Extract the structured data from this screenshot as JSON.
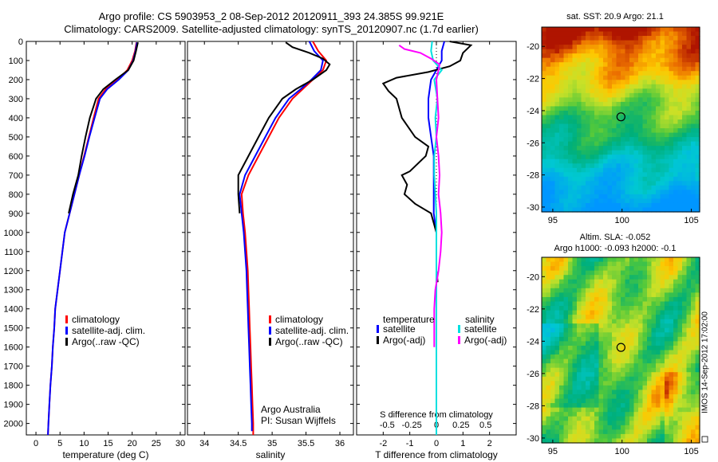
{
  "header": {
    "title_line1": "Argo profile: CS 5903953_2 08-Sep-2012 20120911_393 24.385S 99.921E",
    "title_line2": "Climatology: CARS2009. Satellite-adjusted climatology: synTS_20120907.nc (1.7d earlier)"
  },
  "footer": {
    "credit": "IMOS 14-Sep-2012 17:02:00"
  },
  "colors": {
    "climatology": "#ff0000",
    "satellite": "#0000ff",
    "argo": "#000000",
    "sat_salinity": "#00e0e0",
    "argo_salinity": "#ff00ff"
  },
  "chart_data": [
    {
      "type": "line",
      "panel": "temperature",
      "xlabel": "temperature (deg C)",
      "x_ticks": [
        0,
        5,
        10,
        15,
        20,
        25,
        30
      ],
      "xlim": [
        -2,
        31
      ],
      "ylim": [
        2060,
        0
      ],
      "y_ticks": [
        0,
        100,
        200,
        300,
        400,
        500,
        600,
        700,
        800,
        900,
        1000,
        1100,
        1200,
        1300,
        1400,
        1500,
        1600,
        1700,
        1800,
        1900,
        2000
      ],
      "legend": [
        "climatology",
        "satellite-adj. clim.",
        "Argo(..raw -QC)"
      ],
      "legend_position": "bottom-right",
      "series": [
        {
          "name": "climatology",
          "color": "#ff0000",
          "points": [
            [
              20.9,
              5
            ],
            [
              20.6,
              50
            ],
            [
              20,
              100
            ],
            [
              19,
              150
            ],
            [
              17,
              200
            ],
            [
              14.5,
              250
            ],
            [
              13,
              300
            ],
            [
              12,
              400
            ],
            [
              11,
              500
            ],
            [
              10,
              600
            ],
            [
              9,
              700
            ],
            [
              8,
              800
            ],
            [
              7,
              900
            ],
            [
              6,
              1000
            ],
            [
              5.5,
              1100
            ],
            [
              5,
              1200
            ],
            [
              4.5,
              1300
            ],
            [
              4,
              1400
            ],
            [
              3.8,
              1500
            ],
            [
              3.5,
              1600
            ],
            [
              3.3,
              1700
            ],
            [
              3,
              1800
            ],
            [
              2.8,
              1900
            ],
            [
              2.6,
              2000
            ],
            [
              2.5,
              2060
            ]
          ]
        },
        {
          "name": "satellite-adj. clim.",
          "color": "#0000ff",
          "points": [
            [
              21,
              5
            ],
            [
              20.7,
              50
            ],
            [
              20.2,
              100
            ],
            [
              19.2,
              150
            ],
            [
              17.2,
              200
            ],
            [
              14.8,
              250
            ],
            [
              13.3,
              300
            ],
            [
              12.2,
              400
            ],
            [
              11.1,
              500
            ],
            [
              10.1,
              600
            ],
            [
              9,
              700
            ],
            [
              8,
              800
            ],
            [
              7,
              900
            ],
            [
              6,
              1000
            ],
            [
              5.5,
              1100
            ],
            [
              5,
              1200
            ],
            [
              4.5,
              1300
            ],
            [
              4,
              1400
            ],
            [
              3.8,
              1500
            ],
            [
              3.5,
              1600
            ],
            [
              3.3,
              1700
            ],
            [
              3,
              1800
            ],
            [
              2.8,
              1900
            ],
            [
              2.6,
              2000
            ],
            [
              2.5,
              2060
            ]
          ]
        },
        {
          "name": "Argo(..raw -QC)",
          "color": "#000000",
          "points": [
            [
              21.2,
              5
            ],
            [
              20.8,
              50
            ],
            [
              20.3,
              100
            ],
            [
              19.2,
              150
            ],
            [
              16.5,
              200
            ],
            [
              14,
              250
            ],
            [
              12.5,
              300
            ],
            [
              11.2,
              400
            ],
            [
              10.3,
              500
            ],
            [
              9.5,
              600
            ],
            [
              8.8,
              700
            ],
            [
              7.7,
              800
            ],
            [
              6.8,
              900
            ]
          ]
        }
      ],
      "annotation": ""
    },
    {
      "type": "line",
      "panel": "salinity",
      "xlabel": "salinity",
      "x_ticks": [
        34,
        34.5,
        35,
        35.5,
        36
      ],
      "xlim": [
        33.75,
        36.2
      ],
      "ylim": [
        2060,
        0
      ],
      "legend": [
        "climatology",
        "satellite-adj. clim.",
        "Argo(..raw -QC)"
      ],
      "legend_position": "bottom-right",
      "annotation_lines": [
        "Argo Australia",
        "PI: Susan Wijffels"
      ],
      "series": [
        {
          "name": "climatology",
          "color": "#ff0000",
          "points": [
            [
              35.6,
              0
            ],
            [
              35.68,
              50
            ],
            [
              35.8,
              100
            ],
            [
              35.75,
              150
            ],
            [
              35.6,
              200
            ],
            [
              35.45,
              250
            ],
            [
              35.3,
              300
            ],
            [
              35.1,
              400
            ],
            [
              34.95,
              500
            ],
            [
              34.8,
              600
            ],
            [
              34.65,
              700
            ],
            [
              34.55,
              800
            ],
            [
              34.57,
              900
            ],
            [
              34.6,
              1000
            ],
            [
              34.62,
              1100
            ],
            [
              34.64,
              1200
            ],
            [
              34.65,
              1300
            ],
            [
              34.66,
              1400
            ],
            [
              34.67,
              1500
            ],
            [
              34.68,
              1600
            ],
            [
              34.69,
              1700
            ],
            [
              34.7,
              1800
            ],
            [
              34.71,
              1900
            ],
            [
              34.72,
              2000
            ],
            [
              34.72,
              2060
            ]
          ]
        },
        {
          "name": "satellite-adj. clim.",
          "color": "#0000ff",
          "points": [
            [
              35.55,
              0
            ],
            [
              35.62,
              50
            ],
            [
              35.75,
              100
            ],
            [
              35.72,
              150
            ],
            [
              35.58,
              200
            ],
            [
              35.42,
              250
            ],
            [
              35.25,
              300
            ],
            [
              35.05,
              400
            ],
            [
              34.9,
              500
            ],
            [
              34.75,
              600
            ],
            [
              34.6,
              700
            ],
            [
              34.52,
              800
            ],
            [
              34.55,
              900
            ],
            [
              34.58,
              1000
            ],
            [
              34.6,
              1100
            ],
            [
              34.62,
              1200
            ],
            [
              34.63,
              1300
            ],
            [
              34.64,
              1400
            ],
            [
              34.65,
              1500
            ],
            [
              34.66,
              1600
            ],
            [
              34.67,
              1700
            ],
            [
              34.68,
              1800
            ],
            [
              34.69,
              1900
            ],
            [
              34.7,
              2000
            ],
            [
              34.7,
              2040
            ]
          ]
        },
        {
          "name": "Argo(..raw -QC)",
          "color": "#000000",
          "points": [
            [
              35.2,
              5
            ],
            [
              35.3,
              30
            ],
            [
              35.55,
              60
            ],
            [
              35.75,
              90
            ],
            [
              35.85,
              120
            ],
            [
              35.8,
              150
            ],
            [
              35.6,
              200
            ],
            [
              35.35,
              250
            ],
            [
              35.15,
              300
            ],
            [
              34.95,
              400
            ],
            [
              34.8,
              500
            ],
            [
              34.65,
              600
            ],
            [
              34.5,
              700
            ],
            [
              34.5,
              800
            ],
            [
              34.52,
              900
            ]
          ]
        }
      ]
    },
    {
      "type": "line",
      "panel": "difference",
      "xlabel": "T difference from climatology",
      "x_ticks": [
        -2,
        -1,
        0,
        1,
        2
      ],
      "xlim": [
        -3.0,
        3.0
      ],
      "top_xlabel": "S difference from climatology",
      "top_x_ticks": [
        -0.5,
        -0.25,
        0,
        0.25,
        0.5
      ],
      "ylim": [
        2060,
        0
      ],
      "legend_temperature": {
        "title": "temperature",
        "items": [
          "satellite",
          "Argo(-adj)"
        ]
      },
      "legend_salinity": {
        "title": "salinity",
        "items": [
          "satellite",
          "Argo(-adj)"
        ]
      },
      "series": [
        {
          "name": "satellite",
          "group": "temperature",
          "color": "#0000ff",
          "points": [
            [
              0.3,
              0
            ],
            [
              0.2,
              50
            ],
            [
              0.2,
              100
            ],
            [
              0.0,
              150
            ],
            [
              -0.2,
              200
            ],
            [
              -0.3,
              300
            ],
            [
              -0.3,
              400
            ],
            [
              -0.2,
              500
            ],
            [
              -0.1,
              600
            ],
            [
              -0.1,
              700
            ],
            [
              -0.1,
              800
            ],
            [
              -0.1,
              900
            ],
            [
              0,
              1000
            ],
            [
              0,
              1100
            ],
            [
              0,
              1200
            ],
            [
              0,
              1300
            ],
            [
              0,
              1400
            ],
            [
              0,
              1500
            ],
            [
              0,
              1600
            ],
            [
              0,
              1700
            ],
            [
              0,
              1800
            ],
            [
              0,
              1900
            ],
            [
              0,
              2000
            ],
            [
              0,
              2060
            ]
          ]
        },
        {
          "name": "Argo(-adj)",
          "group": "temperature",
          "color": "#000000",
          "points": [
            [
              0.5,
              0
            ],
            [
              1.3,
              20
            ],
            [
              1.0,
              60
            ],
            [
              0.9,
              100
            ],
            [
              0.5,
              130
            ],
            [
              -0.3,
              160
            ],
            [
              -1.5,
              190
            ],
            [
              -2.0,
              220
            ],
            [
              -1.8,
              260
            ],
            [
              -1.5,
              300
            ],
            [
              -1.3,
              400
            ],
            [
              -0.8,
              500
            ],
            [
              -0.3,
              550
            ],
            [
              -0.4,
              600
            ],
            [
              -1.0,
              680
            ],
            [
              -1.3,
              700
            ],
            [
              -1.1,
              750
            ],
            [
              -1.2,
              800
            ],
            [
              -0.8,
              850
            ],
            [
              -0.2,
              900
            ],
            [
              0,
              1000
            ],
            [
              0,
              1100
            ],
            [
              0,
              1200
            ],
            [
              0.05,
              1260
            ]
          ]
        },
        {
          "name": "satellite",
          "group": "salinity",
          "color": "#00e0e0",
          "points": [
            [
              -0.04,
              0
            ],
            [
              -0.05,
              50
            ],
            [
              -0.03,
              100
            ],
            [
              0.05,
              150
            ],
            [
              -0.02,
              200
            ],
            [
              0.01,
              300
            ],
            [
              -0.01,
              400
            ],
            [
              0,
              500
            ],
            [
              -0.02,
              600
            ],
            [
              -0.02,
              700
            ],
            [
              -0.01,
              800
            ],
            [
              0,
              900
            ],
            [
              0,
              1000
            ],
            [
              0,
              1100
            ],
            [
              0,
              1200
            ],
            [
              0,
              1300
            ],
            [
              0,
              1400
            ],
            [
              0,
              1500
            ],
            [
              0,
              1600
            ],
            [
              0,
              1700
            ],
            [
              0,
              1800
            ],
            [
              0,
              1900
            ],
            [
              0,
              2000
            ],
            [
              0,
              2060
            ]
          ]
        },
        {
          "name": "Argo(-adj)",
          "group": "salinity",
          "color": "#ff00ff",
          "points": [
            [
              -0.35,
              20
            ],
            [
              -0.3,
              40
            ],
            [
              -0.15,
              60
            ],
            [
              -0.05,
              90
            ],
            [
              0.03,
              120
            ],
            [
              0.02,
              150
            ],
            [
              0,
              200
            ],
            [
              0.01,
              300
            ],
            [
              0.02,
              400
            ],
            [
              0,
              500
            ],
            [
              0.02,
              600
            ],
            [
              0.03,
              700
            ],
            [
              0.02,
              800
            ],
            [
              0.04,
              900
            ],
            [
              0.05,
              1000
            ],
            [
              0.04,
              1100
            ],
            [
              0.02,
              1200
            ],
            [
              -0.01,
              1300
            ],
            [
              -0.02,
              1400
            ],
            [
              -0.02,
              1500
            ],
            [
              -0.02,
              1600
            ]
          ]
        }
      ]
    },
    {
      "type": "heatmap",
      "panel": "sst-map",
      "title": "sat. SST: 20.9 Argo: 21.1",
      "x_ticks": [
        95,
        100,
        105
      ],
      "y_ticks": [
        -20,
        -22,
        -24,
        -26,
        -28,
        -30
      ],
      "xlim": [
        94.2,
        105.6
      ],
      "ylim": [
        -30.3,
        -18.8
      ],
      "marker": {
        "lon": 99.921,
        "lat": -24.385
      }
    },
    {
      "type": "heatmap",
      "panel": "sla-map",
      "title_lines": [
        "Altim. SLA: -0.052",
        "Argo h1000: -0.093 h2000: -0.1"
      ],
      "x_ticks": [
        95,
        100,
        105
      ],
      "y_ticks": [
        -20,
        -22,
        -24,
        -26,
        -28,
        -30
      ],
      "xlim": [
        94.2,
        105.6
      ],
      "ylim": [
        -30.3,
        -18.8
      ],
      "marker": {
        "lon": 99.921,
        "lat": -24.385
      }
    }
  ]
}
